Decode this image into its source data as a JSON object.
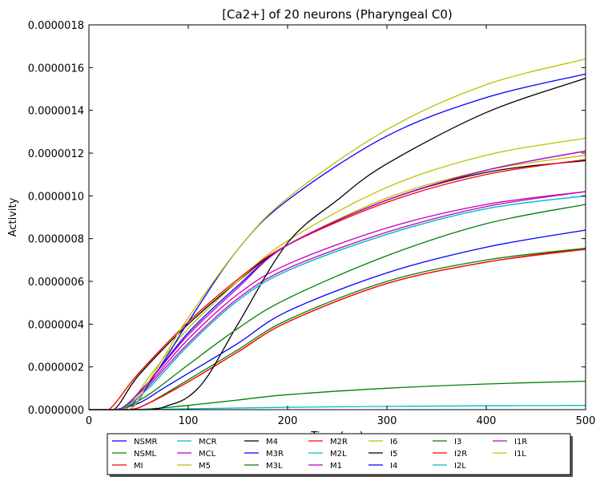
{
  "chart_data": {
    "type": "line",
    "title": "[Ca2+] of 20 neurons (Pharyngeal C0)",
    "xlabel": "Time (ms)",
    "ylabel": "Activity",
    "xlim": [
      0,
      500
    ],
    "ylim": [
      0,
      1.8e-06
    ],
    "x_ticks": [
      "0",
      "100",
      "200",
      "300",
      "400",
      "500"
    ],
    "y_ticks": [
      "0.0000000",
      "0.0000002",
      "0.0000004",
      "0.0000006",
      "0.0000008",
      "0.0000010",
      "0.0000012",
      "0.0000014",
      "0.0000016",
      "0.0000018"
    ],
    "grid": false,
    "legend_position": "bottom",
    "series": [
      {
        "name": "NSMR",
        "color": "#0000ff",
        "values": [
          [
            0,
            0
          ],
          [
            25,
            0
          ],
          [
            50,
            3e-08
          ],
          [
            75,
            1e-07
          ],
          [
            100,
            1.7e-07
          ],
          [
            150,
            3.1e-07
          ],
          [
            200,
            4.6e-07
          ],
          [
            300,
            6.4e-07
          ],
          [
            400,
            7.6e-07
          ],
          [
            500,
            8.4e-07
          ]
        ]
      },
      {
        "name": "NSML",
        "color": "#008000",
        "values": [
          [
            0,
            0
          ],
          [
            40,
            0
          ],
          [
            60,
            3e-09
          ],
          [
            100,
            2e-08
          ],
          [
            150,
            4.5e-08
          ],
          [
            200,
            7e-08
          ],
          [
            300,
            1e-07
          ],
          [
            400,
            1.2e-07
          ],
          [
            500,
            1.33e-07
          ]
        ]
      },
      {
        "name": "MI",
        "color": "#ff0000",
        "values": [
          [
            0,
            0
          ],
          [
            40,
            0
          ],
          [
            60,
            3e-08
          ],
          [
            100,
            1.3e-07
          ],
          [
            150,
            2.7e-07
          ],
          [
            200,
            4.1e-07
          ],
          [
            300,
            5.9e-07
          ],
          [
            400,
            6.9e-07
          ],
          [
            500,
            7.55e-07
          ]
        ]
      },
      {
        "name": "MCR",
        "color": "#00bfbf",
        "values": [
          [
            0,
            0
          ],
          [
            40,
            0
          ],
          [
            60,
            1e-09
          ],
          [
            100,
            4e-09
          ],
          [
            200,
            1.1e-08
          ],
          [
            300,
            1.5e-08
          ],
          [
            400,
            1.8e-08
          ],
          [
            500,
            2e-08
          ]
        ]
      },
      {
        "name": "MCL",
        "color": "#bf00bf",
        "values": [
          [
            0,
            0
          ],
          [
            35,
            0
          ],
          [
            60,
            1.1e-07
          ],
          [
            100,
            3.1e-07
          ],
          [
            150,
            5.2e-07
          ],
          [
            200,
            6.6e-07
          ],
          [
            300,
            8.3e-07
          ],
          [
            400,
            9.5e-07
          ],
          [
            500,
            1.02e-06
          ]
        ]
      },
      {
        "name": "M5",
        "color": "#bfbf00",
        "values": [
          [
            0,
            0
          ],
          [
            20,
            0
          ],
          [
            50,
            1.7e-07
          ],
          [
            100,
            4.1e-07
          ],
          [
            150,
            6.1e-07
          ],
          [
            200,
            7.7e-07
          ],
          [
            300,
            9.9e-07
          ],
          [
            400,
            1.12e-06
          ],
          [
            500,
            1.19e-06
          ]
        ]
      },
      {
        "name": "M4",
        "color": "#000000",
        "values": [
          [
            0,
            0
          ],
          [
            25,
            0
          ],
          [
            50,
            1.6e-07
          ],
          [
            100,
            4e-07
          ],
          [
            150,
            6e-07
          ],
          [
            200,
            7.7e-07
          ],
          [
            300,
            9.8e-07
          ],
          [
            400,
            1.11e-06
          ],
          [
            500,
            1.165e-06
          ]
        ]
      },
      {
        "name": "M3R",
        "color": "#0000ff",
        "values": [
          [
            0,
            0
          ],
          [
            30,
            0
          ],
          [
            60,
            1.3e-07
          ],
          [
            100,
            3.6e-07
          ],
          [
            150,
            5.8e-07
          ],
          [
            200,
            7.7e-07
          ],
          [
            300,
            9.8e-07
          ],
          [
            400,
            1.12e-06
          ],
          [
            500,
            1.21e-06
          ]
        ]
      },
      {
        "name": "M3L",
        "color": "#008000",
        "values": [
          [
            0,
            0
          ],
          [
            40,
            0
          ],
          [
            60,
            3e-08
          ],
          [
            100,
            1.4e-07
          ],
          [
            150,
            2.8e-07
          ],
          [
            200,
            4.2e-07
          ],
          [
            300,
            6e-07
          ],
          [
            400,
            7e-07
          ],
          [
            500,
            7.55e-07
          ]
        ]
      },
      {
        "name": "M2R",
        "color": "#ff0000",
        "values": [
          [
            0,
            0
          ],
          [
            40,
            0
          ],
          [
            60,
            3e-08
          ],
          [
            100,
            1.3e-07
          ],
          [
            150,
            2.7e-07
          ],
          [
            200,
            4.1e-07
          ],
          [
            300,
            5.9e-07
          ],
          [
            400,
            6.9e-07
          ],
          [
            500,
            7.5e-07
          ]
        ]
      },
      {
        "name": "M2L",
        "color": "#00bfbf",
        "values": [
          [
            0,
            0
          ],
          [
            30,
            0
          ],
          [
            60,
            1e-07
          ],
          [
            100,
            3e-07
          ],
          [
            150,
            5.1e-07
          ],
          [
            200,
            6.5e-07
          ],
          [
            300,
            8.2e-07
          ],
          [
            400,
            9.4e-07
          ],
          [
            500,
            1e-06
          ]
        ]
      },
      {
        "name": "M1",
        "color": "#bf00bf",
        "values": [
          [
            0,
            0
          ],
          [
            30,
            0
          ],
          [
            60,
            1.2e-07
          ],
          [
            100,
            3.3e-07
          ],
          [
            150,
            5.4e-07
          ],
          [
            200,
            6.8e-07
          ],
          [
            300,
            8.5e-07
          ],
          [
            400,
            9.6e-07
          ],
          [
            500,
            1.02e-06
          ]
        ]
      },
      {
        "name": "I6",
        "color": "#bfbf00",
        "values": [
          [
            0,
            0
          ],
          [
            35,
            0
          ],
          [
            60,
            1.5e-07
          ],
          [
            100,
            3.8e-07
          ],
          [
            150,
            6e-07
          ],
          [
            200,
            7.9e-07
          ],
          [
            300,
            1.04e-06
          ],
          [
            400,
            1.19e-06
          ],
          [
            500,
            1.27e-06
          ]
        ]
      },
      {
        "name": "I5",
        "color": "#000000",
        "values": [
          [
            0,
            0
          ],
          [
            60,
            0
          ],
          [
            80,
            2e-08
          ],
          [
            100,
            6e-08
          ],
          [
            120,
            1.6e-07
          ],
          [
            150,
            4e-07
          ],
          [
            200,
            7.8e-07
          ],
          [
            250,
            9.8e-07
          ],
          [
            300,
            1.15e-06
          ],
          [
            400,
            1.39e-06
          ],
          [
            500,
            1.55e-06
          ]
        ]
      },
      {
        "name": "I4",
        "color": "#0000ff",
        "values": [
          [
            0,
            0
          ],
          [
            40,
            0
          ],
          [
            60,
            1.2e-07
          ],
          [
            80,
            2.6e-07
          ],
          [
            100,
            4.1e-07
          ],
          [
            150,
            7.5e-07
          ],
          [
            200,
            9.8e-07
          ],
          [
            300,
            1.28e-06
          ],
          [
            400,
            1.46e-06
          ],
          [
            500,
            1.57e-06
          ]
        ]
      },
      {
        "name": "I3",
        "color": "#008000",
        "values": [
          [
            0,
            0
          ],
          [
            30,
            0
          ],
          [
            60,
            7e-08
          ],
          [
            100,
            2.1e-07
          ],
          [
            150,
            3.8e-07
          ],
          [
            200,
            5.2e-07
          ],
          [
            300,
            7.2e-07
          ],
          [
            400,
            8.7e-07
          ],
          [
            500,
            9.6e-07
          ]
        ]
      },
      {
        "name": "I2R",
        "color": "#ff0000",
        "values": [
          [
            0,
            0
          ],
          [
            20,
            0
          ],
          [
            50,
            1.7e-07
          ],
          [
            100,
            4.1e-07
          ],
          [
            150,
            6.1e-07
          ],
          [
            200,
            7.7e-07
          ],
          [
            300,
            9.7e-07
          ],
          [
            400,
            1.1e-06
          ],
          [
            500,
            1.17e-06
          ]
        ]
      },
      {
        "name": "I2L",
        "color": "#00bfbf",
        "values": [
          [
            0,
            0
          ],
          [
            30,
            0
          ],
          [
            60,
            1e-07
          ],
          [
            100,
            3e-07
          ],
          [
            150,
            5.1e-07
          ],
          [
            200,
            6.5e-07
          ],
          [
            300,
            8.2e-07
          ],
          [
            400,
            9.4e-07
          ],
          [
            500,
            1e-06
          ]
        ]
      },
      {
        "name": "I1R",
        "color": "#bf00bf",
        "values": [
          [
            0,
            0
          ],
          [
            30,
            0
          ],
          [
            60,
            1.3e-07
          ],
          [
            100,
            3.5e-07
          ],
          [
            150,
            5.7e-07
          ],
          [
            200,
            7.7e-07
          ],
          [
            300,
            9.8e-07
          ],
          [
            400,
            1.12e-06
          ],
          [
            500,
            1.21e-06
          ]
        ]
      },
      {
        "name": "I1L",
        "color": "#bfbf00",
        "values": [
          [
            0,
            0
          ],
          [
            40,
            0
          ],
          [
            60,
            1.3e-07
          ],
          [
            80,
            2.8e-07
          ],
          [
            100,
            4.3e-07
          ],
          [
            150,
            7.5e-07
          ],
          [
            200,
            9.9e-07
          ],
          [
            300,
            1.31e-06
          ],
          [
            400,
            1.52e-06
          ],
          [
            500,
            1.64e-06
          ]
        ]
      }
    ]
  }
}
